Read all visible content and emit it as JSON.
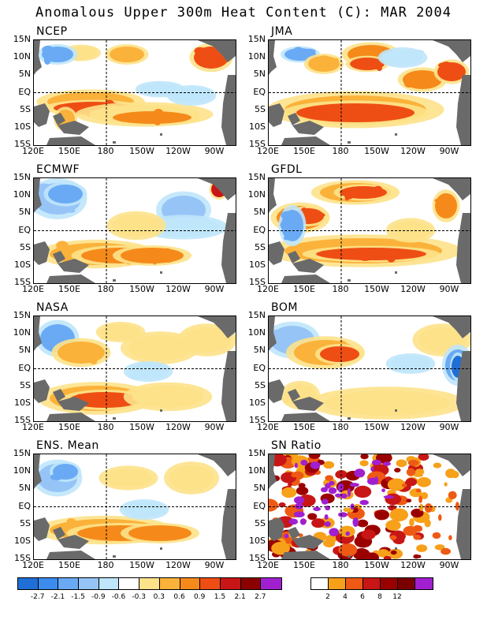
{
  "title": "Anomalous Upper 300m Heat Content (C): MAR 2004",
  "lat_labels": [
    "15N",
    "10N",
    "5N",
    "EQ",
    "5S",
    "10S",
    "15S"
  ],
  "lon_labels": [
    "120E",
    "150E",
    "180",
    "150W",
    "120W",
    "90W"
  ],
  "panels": [
    {
      "title": "NCEP"
    },
    {
      "title": "JMA"
    },
    {
      "title": "ECMWF"
    },
    {
      "title": "GFDL"
    },
    {
      "title": "NASA"
    },
    {
      "title": "BOM"
    },
    {
      "title": "ENS. Mean"
    },
    {
      "title": "SN Ratio"
    }
  ],
  "anomaly_colorbar": {
    "colors": [
      "#1f6fd6",
      "#3c8cf0",
      "#6aaaf5",
      "#96c4f7",
      "#bfe6fb",
      "#ffffff",
      "#fde28a",
      "#fbb23a",
      "#f58a1b",
      "#ee4e14",
      "#c81616",
      "#8b0000",
      "#a020d0"
    ],
    "labels": [
      "-2.7",
      "-2.1",
      "-1.5",
      "-0.9",
      "-0.6",
      "-0.3",
      "0.3",
      "0.6",
      "0.9",
      "1.5",
      "2.1",
      "2.7"
    ]
  },
  "snr_colorbar": {
    "colors": [
      "#ffffff",
      "#f7a01a",
      "#ee5a14",
      "#c81616",
      "#9b0000",
      "#7a0000",
      "#a020d0"
    ],
    "labels": [
      "2",
      "4",
      "6",
      "8",
      "12"
    ]
  },
  "colors": {
    "land": "#6a6a6a",
    "border": "#000000"
  }
}
